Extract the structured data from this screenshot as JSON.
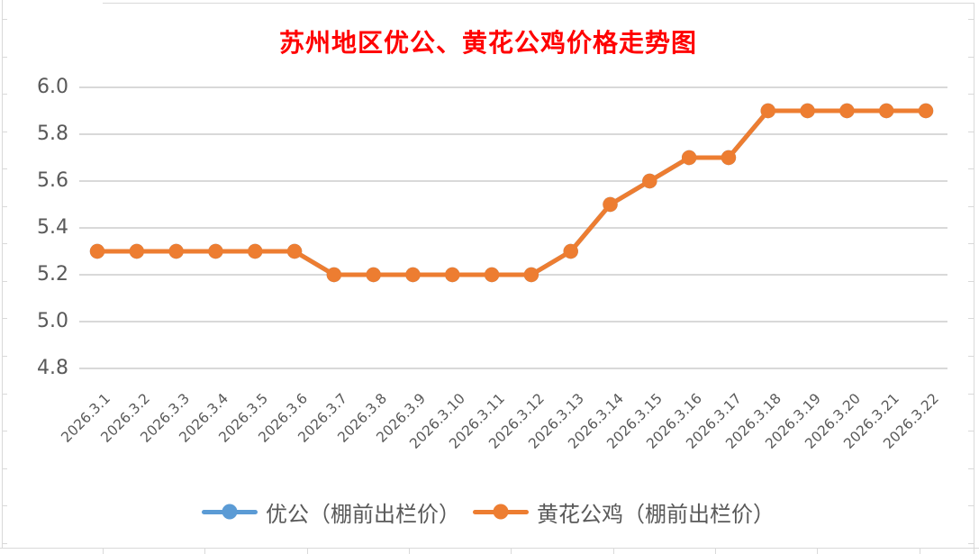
{
  "chart": {
    "title": "苏州地区优公、黄花公鸡价格走势图",
    "colors": {
      "title": "#FF0000",
      "axis_text": "#595959",
      "gridline": "#D9D9D9",
      "frame": "#D9D9D9",
      "background": "#FFFFFF"
    }
  },
  "chart_data": {
    "type": "line",
    "title": "苏州地区优公、黄花公鸡价格走势图",
    "categories": [
      "2026.3.1",
      "2026.3.2",
      "2026.3.3",
      "2026.3.4",
      "2026.3.5",
      "2026.3.6",
      "2026.3.7",
      "2026.3.8",
      "2026.3.9",
      "2026.3.10",
      "2026.3.11",
      "2026.3.12",
      "2026.3.13",
      "2026.3.14",
      "2026.3.15",
      "2026.3.16",
      "2026.3.17",
      "2026.3.18",
      "2026.3.19",
      "2026.3.20",
      "2026.3.21",
      "2026.3.22"
    ],
    "series": [
      {
        "name": "优公（棚前出栏价）",
        "color": "#5B9BD5",
        "marker": "circle",
        "values": [
          5.3,
          5.3,
          5.3,
          5.3,
          5.3,
          5.3,
          5.2,
          5.2,
          5.2,
          5.2,
          5.2,
          5.2,
          5.3,
          5.5,
          5.6,
          5.7,
          5.7,
          5.9,
          5.9,
          5.9,
          5.9,
          5.9
        ]
      },
      {
        "name": "黄花公鸡（棚前出栏价）",
        "color": "#ED7D31",
        "marker": "circle",
        "values": [
          5.3,
          5.3,
          5.3,
          5.3,
          5.3,
          5.3,
          5.2,
          5.2,
          5.2,
          5.2,
          5.2,
          5.2,
          5.3,
          5.5,
          5.6,
          5.7,
          5.7,
          5.9,
          5.9,
          5.9,
          5.9,
          5.9
        ]
      }
    ],
    "ylim": [
      4.8,
      6.0
    ],
    "y_tick_labels": [
      "6.0",
      "5.8",
      "5.6",
      "5.4",
      "5.2",
      "5.0",
      "4.8"
    ],
    "y_tick_step": 0.2,
    "grid": "horizontal",
    "legend_position": "bottom",
    "note": "blue series is exactly covered by the orange series in the plot area"
  }
}
